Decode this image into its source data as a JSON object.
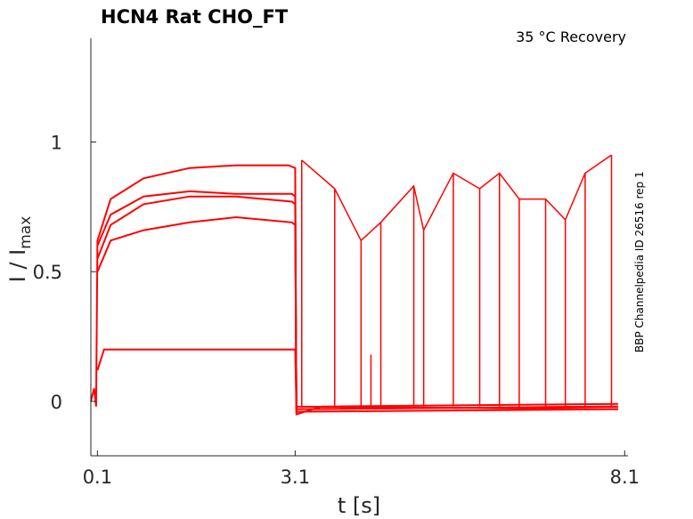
{
  "chart_data": {
    "type": "line",
    "title": "HCN4  Rat  CHO_FT",
    "condition": "35 °C  Recovery",
    "side_label": "BBP Channelpedia ID 26516 rep 1",
    "xlabel": "t [s]",
    "ylabel_main": "I / I",
    "ylabel_sub": "max",
    "xlim": [
      0.0,
      8.15
    ],
    "ylim": [
      -0.21,
      1.4
    ],
    "x_ticks": [
      {
        "value": 0.1,
        "label": "0.1"
      },
      {
        "value": 3.1,
        "label": "3.1"
      },
      {
        "value": 8.1,
        "label": "8.1"
      }
    ],
    "y_ticks": [
      {
        "value": 0,
        "label": "0"
      },
      {
        "value": 0.5,
        "label": "0.5"
      },
      {
        "value": 1,
        "label": "1"
      }
    ],
    "line_color": "#ff0000",
    "series": [
      {
        "values": [
          [
            0.0,
            0.0
          ],
          [
            0.05,
            0.05
          ],
          [
            0.08,
            -0.02
          ],
          [
            0.1,
            0.62
          ],
          [
            0.3,
            0.78
          ],
          [
            0.8,
            0.86
          ],
          [
            1.5,
            0.9
          ],
          [
            2.2,
            0.91
          ],
          [
            3.0,
            0.91
          ],
          [
            3.1,
            0.9
          ],
          [
            3.12,
            -0.05
          ],
          [
            3.5,
            -0.02
          ],
          [
            8.0,
            -0.01
          ]
        ]
      },
      {
        "values": [
          [
            0.1,
            0.55
          ],
          [
            0.3,
            0.68
          ],
          [
            0.8,
            0.76
          ],
          [
            1.5,
            0.79
          ],
          [
            2.2,
            0.79
          ],
          [
            3.05,
            0.77
          ],
          [
            3.1,
            0.76
          ],
          [
            3.12,
            -0.03
          ],
          [
            8.0,
            -0.02
          ]
        ]
      },
      {
        "values": [
          [
            0.1,
            0.5
          ],
          [
            0.3,
            0.62
          ],
          [
            0.8,
            0.66
          ],
          [
            1.5,
            0.69
          ],
          [
            2.2,
            0.71
          ],
          [
            3.05,
            0.69
          ],
          [
            3.1,
            0.68
          ],
          [
            3.12,
            -0.02
          ],
          [
            8.0,
            -0.03
          ]
        ]
      },
      {
        "values": [
          [
            0.1,
            0.6
          ],
          [
            0.3,
            0.72
          ],
          [
            0.8,
            0.79
          ],
          [
            1.5,
            0.81
          ],
          [
            2.2,
            0.8
          ],
          [
            3.05,
            0.8
          ],
          [
            3.1,
            0.79
          ],
          [
            3.12,
            -0.04
          ],
          [
            8.0,
            -0.03
          ]
        ]
      },
      {
        "values": [
          [
            0.1,
            0.12
          ],
          [
            0.2,
            0.2
          ],
          [
            0.8,
            0.2
          ],
          [
            1.5,
            0.2
          ],
          [
            2.2,
            0.2
          ],
          [
            3.05,
            0.2
          ],
          [
            3.1,
            0.2
          ],
          [
            3.12,
            -0.03
          ],
          [
            8.0,
            -0.02
          ]
        ]
      }
    ],
    "recovery_points": [
      {
        "x": 3.2,
        "y": 0.93
      },
      {
        "x": 3.7,
        "y": 0.82
      },
      {
        "x": 4.1,
        "y": 0.62
      },
      {
        "x": 4.4,
        "y": 0.69
      },
      {
        "x": 4.25,
        "y": 0.18
      },
      {
        "x": 4.9,
        "y": 0.83
      },
      {
        "x": 5.05,
        "y": 0.66
      },
      {
        "x": 5.5,
        "y": 0.88
      },
      {
        "x": 5.9,
        "y": 0.82
      },
      {
        "x": 6.2,
        "y": 0.88
      },
      {
        "x": 6.5,
        "y": 0.78
      },
      {
        "x": 6.9,
        "y": 0.78
      },
      {
        "x": 7.2,
        "y": 0.7
      },
      {
        "x": 7.5,
        "y": 0.88
      },
      {
        "x": 7.9,
        "y": 0.95
      }
    ]
  }
}
